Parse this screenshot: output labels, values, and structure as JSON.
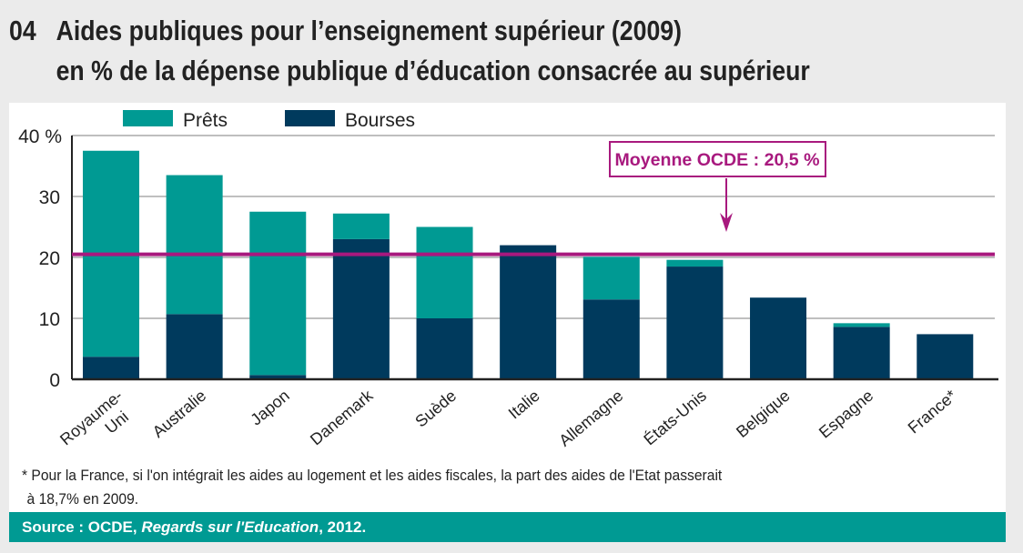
{
  "header": {
    "number": "04",
    "title_line1": "Aides publiques pour l’enseignement supérieur (2009)",
    "title_line2": "en % de la dépense publique d’éducation consacrée au supérieur"
  },
  "chart_data": {
    "type": "bar",
    "stacked": true,
    "categories": [
      "Royaume-Uni",
      "Australie",
      "Japon",
      "Danemark",
      "Suède",
      "Italie",
      "Allemagne",
      "États-Unis",
      "Belgique",
      "Espagne",
      "France*"
    ],
    "series": [
      {
        "name": "Bourses",
        "color": "#003a5d",
        "values": [
          3.7,
          10.7,
          0.7,
          23.0,
          10.0,
          22.0,
          13.1,
          18.5,
          13.4,
          8.6,
          7.4
        ]
      },
      {
        "name": "Prêts",
        "color": "#009a93",
        "values": [
          33.8,
          22.8,
          26.8,
          4.2,
          15.0,
          0,
          7.0,
          1.1,
          0,
          0.6,
          0
        ]
      }
    ],
    "yticks": [
      "0",
      "10",
      "20",
      "30",
      "40 %"
    ],
    "ylim": [
      0,
      40
    ],
    "grid": true,
    "legend": "top",
    "reference_line": {
      "value": 20.5,
      "label": "Moyenne OCDE : 20,5 %",
      "color": "#a8197e"
    }
  },
  "footnote": {
    "line1": "* Pour la France, si l'on intégrait les aides au logement et les aides fiscales, la part des aides de l'Etat passerait",
    "line2": "à 18,7% en 2009."
  },
  "source": {
    "prefix": "Source :  OCDE, ",
    "italic": "Regards sur l'Education",
    "suffix": ", 2012."
  }
}
